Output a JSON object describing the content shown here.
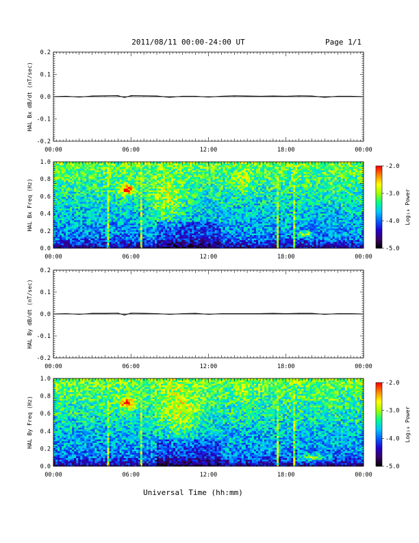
{
  "header": {
    "title": "2011/08/11  00:00-24:00 UT",
    "page": "Page 1/1"
  },
  "footer": {
    "xlabel": "Universal Time (hh:mm)"
  },
  "colorbar": {
    "label": "Log₁₀ Power",
    "ticks": [
      "-2.0",
      "-3.0",
      "-4.0",
      "-5.0"
    ],
    "range": [
      -5.0,
      -2.0
    ],
    "colormap": [
      "#000000",
      "#3a0066",
      "#2200cc",
      "#0060ff",
      "#00c8ff",
      "#00ff90",
      "#a0ff00",
      "#ffff00",
      "#ff8800",
      "#ff0000"
    ]
  },
  "chart_data": [
    {
      "type": "line",
      "ylabel": "HAL Bx dB/dt (nT/sec)",
      "x_ticks": [
        "00:00",
        "06:00",
        "12:00",
        "18:00",
        "00:00"
      ],
      "xlim": [
        0,
        24
      ],
      "ylim": [
        -0.2,
        0.2
      ],
      "y_ticks": [
        "0.2",
        "0.1",
        "0.0",
        "-0.1",
        "-0.2"
      ],
      "series": [
        {
          "x": [
            0,
            1,
            2,
            3,
            4,
            5,
            5.5,
            6,
            7,
            8,
            9,
            10,
            11,
            12,
            13,
            14,
            15,
            16,
            17,
            18,
            19,
            20,
            21,
            22,
            23,
            24
          ],
          "values": [
            0.0,
            0.002,
            -0.002,
            0.003,
            0.004,
            0.005,
            -0.004,
            0.005,
            0.004,
            0.003,
            -0.003,
            0.002,
            0.002,
            -0.002,
            0.002,
            0.004,
            0.003,
            0.002,
            0.003,
            0.002,
            0.004,
            0.003,
            -0.003,
            0.002,
            0.002,
            0.0
          ]
        }
      ]
    },
    {
      "type": "heatmap",
      "ylabel": "HAL Bx Freq (Hz)",
      "x_ticks": [
        "00:00",
        "06:00",
        "12:00",
        "18:00",
        "00:00"
      ],
      "xlim": [
        0,
        24
      ],
      "ylim": [
        0.0,
        1.0
      ],
      "y_ticks": [
        "1.0",
        "0.8",
        "0.6",
        "0.4",
        "0.2",
        "0.0"
      ],
      "features": [
        {
          "t": 5.7,
          "f": 0.68,
          "dt": 0.6,
          "df": 0.06,
          "level": -2.1
        },
        {
          "t": 8.8,
          "f": 0.6,
          "dt": 1.2,
          "df": 0.25,
          "level": -2.9
        },
        {
          "t": 14.7,
          "f": 0.8,
          "dt": 0.5,
          "df": 0.12,
          "level": -2.9
        },
        {
          "t": 21.5,
          "f": 0.7,
          "dt": 0.4,
          "df": 0.08,
          "level": -3.2
        },
        {
          "t": 19.5,
          "f": 0.17,
          "dt": 0.6,
          "df": 0.03,
          "level": -3.0
        }
      ],
      "vertical_lines": [
        4.2,
        6.8,
        17.4,
        18.6
      ]
    },
    {
      "type": "line",
      "ylabel": "HAL By dB/dt (nT/sec)",
      "x_ticks": [
        "00:00",
        "06:00",
        "12:00",
        "18:00",
        "00:00"
      ],
      "xlim": [
        0,
        24
      ],
      "ylim": [
        -0.2,
        0.2
      ],
      "y_ticks": [
        "0.2",
        "0.1",
        "0.0",
        "-0.1",
        "-0.2"
      ],
      "series": [
        {
          "x": [
            0,
            1,
            2,
            3,
            4,
            5,
            5.5,
            6,
            7,
            8,
            9,
            10,
            11,
            12,
            13,
            14,
            15,
            16,
            17,
            18,
            19,
            20,
            21,
            22,
            23,
            24
          ],
          "values": [
            0.0,
            0.002,
            -0.002,
            0.003,
            0.003,
            0.004,
            -0.005,
            0.004,
            0.003,
            0.002,
            -0.002,
            0.002,
            0.003,
            -0.002,
            0.002,
            0.002,
            0.002,
            0.002,
            0.003,
            0.002,
            0.003,
            0.003,
            -0.002,
            0.002,
            0.002,
            0.0
          ]
        }
      ]
    },
    {
      "type": "heatmap",
      "ylabel": "HAL By Freq (Hz)",
      "x_ticks": [
        "00:00",
        "06:00",
        "12:00",
        "18:00",
        "00:00"
      ],
      "xlim": [
        0,
        24
      ],
      "ylim": [
        0.0,
        1.0
      ],
      "y_ticks": [
        "1.0",
        "0.8",
        "0.6",
        "0.4",
        "0.2",
        "0.0"
      ],
      "features": [
        {
          "t": 5.7,
          "f": 0.72,
          "dt": 0.6,
          "df": 0.06,
          "level": -2.1
        },
        {
          "t": 9.8,
          "f": 0.7,
          "dt": 1.6,
          "df": 0.3,
          "level": -2.8
        },
        {
          "t": 14.7,
          "f": 0.85,
          "dt": 0.5,
          "df": 0.12,
          "level": -3.0
        },
        {
          "t": 21.5,
          "f": 0.75,
          "dt": 0.4,
          "df": 0.1,
          "level": -3.2
        },
        {
          "t": 20.0,
          "f": 0.1,
          "dt": 1.0,
          "df": 0.04,
          "level": -3.1
        }
      ],
      "vertical_lines": [
        4.2,
        6.8,
        17.4,
        18.6
      ]
    }
  ]
}
